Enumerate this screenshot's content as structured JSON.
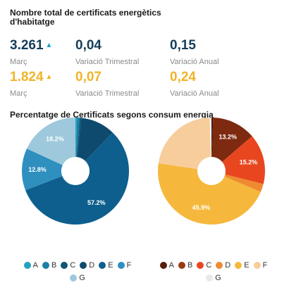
{
  "header": {
    "title": "Nombre total de certificats energètics d'habitatge"
  },
  "stats": {
    "row1": {
      "color": "#163d5a",
      "arrow_color": "#1a9fc4",
      "main_value": "3.261",
      "main_arrow": "▲",
      "main_label": "Març",
      "quarter_value": "0,04",
      "quarter_label": "Variació Trimestral",
      "annual_value": "0,15",
      "annual_label": "Variació Anual"
    },
    "row2": {
      "color": "#f0b429",
      "arrow_color": "#f0b429",
      "main_value": "1.824",
      "main_arrow": "▲",
      "main_label": "Març",
      "quarter_value": "0,07",
      "quarter_label": "Variació Trimestral",
      "annual_value": "0,24",
      "annual_label": "Variació Anual"
    }
  },
  "charts_section": {
    "title": "Percentatge de Certificats segons consum energia"
  },
  "chart_data": [
    {
      "type": "pie",
      "title": "",
      "categories": [
        "A",
        "B",
        "C",
        "D",
        "E",
        "F",
        "G"
      ],
      "values": [
        0.5,
        0.8,
        0.5,
        10.5,
        57.2,
        12.8,
        18.2
      ],
      "colors": [
        "#22a4c2",
        "#1c7fa6",
        "#0c5678",
        "#0e4a6d",
        "#0e5f8e",
        "#2f8fbe",
        "#9ec9dc"
      ],
      "data_labels": [
        "",
        "",
        "",
        "",
        "57.2%",
        "12.8%",
        "18.2%"
      ],
      "legend": [
        "A",
        "B",
        "C",
        "D",
        "E",
        "F",
        "G"
      ],
      "legend_placement": "bottom"
    },
    {
      "type": "pie",
      "title": "",
      "categories": [
        "A",
        "B",
        "C",
        "D",
        "E",
        "F",
        "G"
      ],
      "values": [
        0.5,
        13.2,
        15.2,
        2.5,
        45.9,
        22.2,
        0.5
      ],
      "colors": [
        "#4a1608",
        "#7d2a10",
        "#e8461f",
        "#ee8a30",
        "#f5b83c",
        "#f7cd9c",
        "#ffffff"
      ],
      "data_labels": [
        "",
        "13.2%",
        "15.2%",
        "",
        "45.9%",
        "",
        ""
      ],
      "legend": [
        "A",
        "B",
        "C",
        "D",
        "E",
        "F",
        "G"
      ],
      "legend_colors": [
        "#5a1c0b",
        "#9a3a14",
        "#e8461f",
        "#ee8a30",
        "#f5b83c",
        "#f7cd9c",
        "#e9e9e9"
      ],
      "legend_placement": "bottom"
    }
  ]
}
